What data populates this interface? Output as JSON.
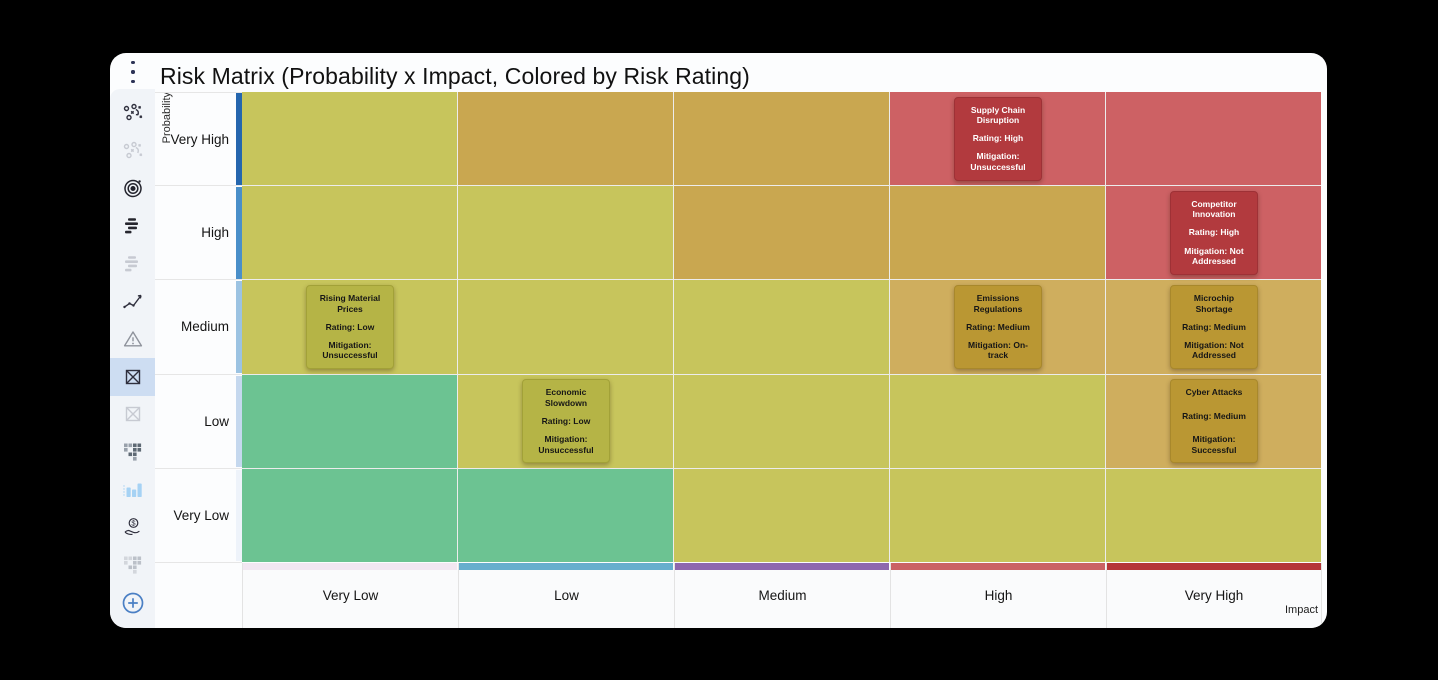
{
  "header": {
    "title": "Risk Matrix (Probability x Impact, Colored by Risk Rating)"
  },
  "menu": {
    "kebab_icon": "vertical-three-dots"
  },
  "sidebar": {
    "accent_color": "#4a7fc4",
    "selected_bg": "#cdddf2",
    "icons": [
      {
        "name": "strategy-icon",
        "state": "normal"
      },
      {
        "name": "strategy-icon",
        "state": "disabled"
      },
      {
        "name": "target-icon",
        "state": "normal"
      },
      {
        "name": "stacked-bars-icon",
        "state": "normal"
      },
      {
        "name": "stacked-bars-icon",
        "state": "disabled"
      },
      {
        "name": "trend-line-icon",
        "state": "normal"
      },
      {
        "name": "warning-triangle-icon",
        "state": "normal"
      },
      {
        "name": "matrix-bowtie-icon",
        "state": "selected"
      },
      {
        "name": "matrix-bowtie-icon",
        "state": "disabled"
      },
      {
        "name": "waffle-grid-icon",
        "state": "normal"
      },
      {
        "name": "bar-chart-icon",
        "state": "highlighted"
      },
      {
        "name": "payout-hand-icon",
        "state": "normal"
      },
      {
        "name": "waffle-grid-icon",
        "state": "disabled"
      },
      {
        "name": "add-circle-icon",
        "state": "normal"
      }
    ]
  },
  "chart_data": {
    "type": "heatmap",
    "title": "Risk Matrix (Probability x Impact, Colored by Risk Rating)",
    "xlabel": "Impact",
    "ylabel": "Probability",
    "x_categories": [
      "Very Low",
      "Low",
      "Medium",
      "High",
      "Very High"
    ],
    "y_categories": [
      "Very High",
      "High",
      "Medium",
      "Low",
      "Very Low"
    ],
    "grid": true,
    "legend": "none",
    "palette": {
      "yellow_green": "#c7c55c",
      "tan": "#c9a750",
      "tan_light": "#cfae5e",
      "red": "#cd6164",
      "green": "#6cc392"
    },
    "cell_colors": [
      [
        "yellow_green",
        "tan",
        "tan",
        "red",
        "red"
      ],
      [
        "yellow_green",
        "yellow_green",
        "tan",
        "tan",
        "red"
      ],
      [
        "yellow_green",
        "yellow_green",
        "yellow_green",
        "tan_light",
        "tan_light"
      ],
      [
        "green",
        "yellow_green",
        "yellow_green",
        "yellow_green",
        "tan_light"
      ],
      [
        "green",
        "green",
        "yellow_green",
        "yellow_green",
        "yellow_green"
      ]
    ],
    "row_strip_colors": [
      "#2566ae",
      "#4a8fc9",
      "#9cc3e2",
      "#c5d8ee",
      "#eef3fa"
    ],
    "col_strip_colors": [
      "#f2e7f2",
      "#66aecd",
      "#8e68ae",
      "#ca6265",
      "#b53639"
    ],
    "box_themes": {
      "red": {
        "fill": "#b23a3e",
        "border": "#9e3136",
        "text": "#ffffff"
      },
      "olive": {
        "fill": "#b5b446",
        "border": "#a2a138",
        "text": "#161616"
      },
      "gold": {
        "fill": "#ba9733",
        "border": "#a8882c",
        "text": "#161616"
      }
    },
    "risks": [
      {
        "name": "Supply Chain Disruption",
        "probability": "Very High",
        "impact": "High",
        "row": 0,
        "col": 3,
        "theme": "red",
        "rating_label": "Rating: High",
        "mitigation_label": "Mitigation: Unsuccessful"
      },
      {
        "name": "Competitor Innovation",
        "probability": "High",
        "impact": "Very High",
        "row": 1,
        "col": 4,
        "theme": "red",
        "rating_label": "Rating: High",
        "mitigation_label": "Mitigation: Not Addressed"
      },
      {
        "name": "Rising Material Prices",
        "probability": "Medium",
        "impact": "Very Low",
        "row": 2,
        "col": 0,
        "theme": "olive",
        "rating_label": "Rating: Low",
        "mitigation_label": "Mitigation: Unsuccessful"
      },
      {
        "name": "Emissions Regulations",
        "probability": "Medium",
        "impact": "High",
        "row": 2,
        "col": 3,
        "theme": "gold",
        "rating_label": "Rating: Medium",
        "mitigation_label": "Mitigation: On-track"
      },
      {
        "name": "Microchip Shortage",
        "probability": "Medium",
        "impact": "Very High",
        "row": 2,
        "col": 4,
        "theme": "gold",
        "rating_label": "Rating: Medium",
        "mitigation_label": "Mitigation: Not Addressed"
      },
      {
        "name": "Economic Slowdown",
        "probability": "Low",
        "impact": "Low",
        "row": 3,
        "col": 1,
        "theme": "olive",
        "rating_label": "Rating: Low",
        "mitigation_label": "Mitigation: Unsuccessful"
      },
      {
        "name": "Cyber Attacks",
        "probability": "Low",
        "impact": "Very High",
        "row": 3,
        "col": 4,
        "theme": "gold",
        "rating_label": "Rating: Medium",
        "mitigation_label": "Mitigation: Successful"
      }
    ]
  }
}
